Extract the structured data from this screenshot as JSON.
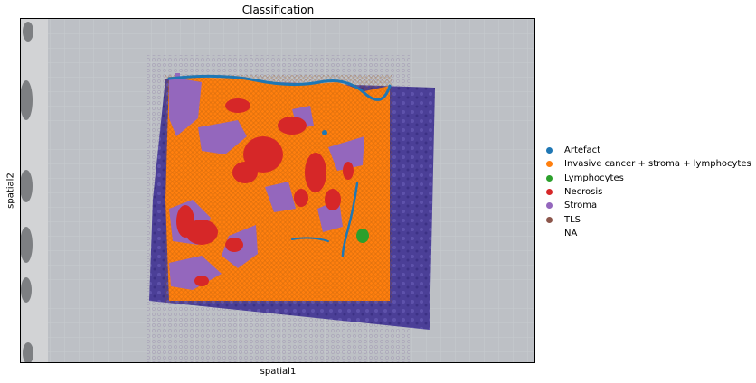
{
  "chart_data": {
    "type": "scatter",
    "title": "Classification",
    "xlabel": "spatial1",
    "ylabel": "spatial2",
    "grid": false,
    "legend_placement": "right-center",
    "background": "histology image (H&E stained tissue section)",
    "categories": [
      {
        "name": "Artefact",
        "color": "#1f77b4"
      },
      {
        "name": "Invasive cancer + stroma + lymphocytes",
        "color": "#ff7f0e"
      },
      {
        "name": "Lymphocytes",
        "color": "#2ca02c"
      },
      {
        "name": "Necrosis",
        "color": "#d62728"
      },
      {
        "name": "Stroma",
        "color": "#9467bd"
      },
      {
        "name": "TLS",
        "color": "#8c564b"
      },
      {
        "name": "NA",
        "color": "#ffffff"
      }
    ]
  }
}
